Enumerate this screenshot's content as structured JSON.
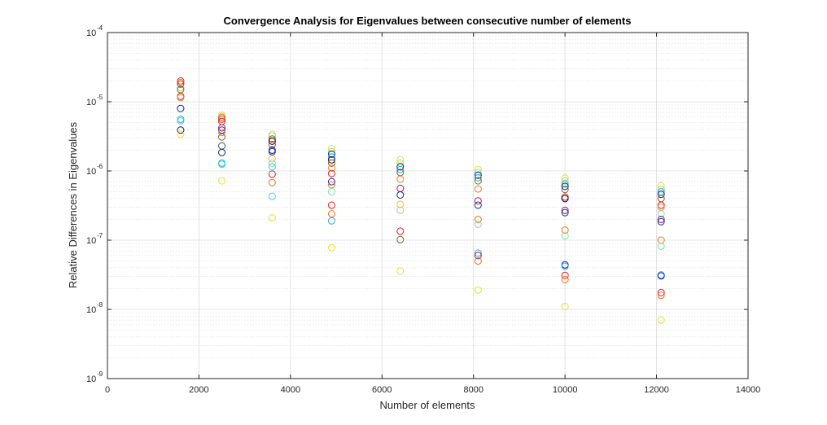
{
  "chart_data": {
    "type": "scatter",
    "title": "Convergence Analysis for Eigenvalues between consecutive number of elements",
    "xlabel": "Number of elements",
    "ylabel": "Relative Differences in Eigenvalues",
    "xlim": [
      0,
      14000
    ],
    "ylim": [
      1e-09,
      0.0001
    ],
    "yscale": "log",
    "grid": true,
    "minor_grid": true,
    "legend": "none",
    "marker": "circle-open",
    "x_ticks": [
      {
        "value": 0,
        "label": "0"
      },
      {
        "value": 2000,
        "label": "2000"
      },
      {
        "value": 4000,
        "label": "4000"
      },
      {
        "value": 6000,
        "label": "6000"
      },
      {
        "value": 8000,
        "label": "8000"
      },
      {
        "value": 10000,
        "label": "10000"
      },
      {
        "value": 12000,
        "label": "12000"
      },
      {
        "value": 14000,
        "label": "14000"
      }
    ],
    "y_ticks": [
      {
        "value": 1e-09,
        "base": "10",
        "exp": "-9"
      },
      {
        "value": 1e-08,
        "base": "10",
        "exp": "-8"
      },
      {
        "value": 1e-07,
        "base": "10",
        "exp": "-7"
      },
      {
        "value": 1e-06,
        "base": "10",
        "exp": "-6"
      },
      {
        "value": 1e-05,
        "base": "10",
        "exp": "-5"
      },
      {
        "value": 0.0001,
        "base": "10",
        "exp": "-4"
      }
    ],
    "points": [
      {
        "x": 1600,
        "y": 2e-05,
        "color": "#e03010"
      },
      {
        "x": 1600,
        "y": 1.9e-05,
        "color": "#f07020"
      },
      {
        "x": 1600,
        "y": 1.8e-05,
        "color": "#cc2020"
      },
      {
        "x": 1600,
        "y": 1.6e-05,
        "color": "#a0e080"
      },
      {
        "x": 1600,
        "y": 1.5e-05,
        "color": "#806020"
      },
      {
        "x": 1600,
        "y": 1.2e-05,
        "color": "#e02020"
      },
      {
        "x": 1600,
        "y": 1.15e-05,
        "color": "#f08030"
      },
      {
        "x": 1600,
        "y": 8e-06,
        "color": "#1020a0"
      },
      {
        "x": 1600,
        "y": 5.6e-06,
        "color": "#20b0e0"
      },
      {
        "x": 1600,
        "y": 5.3e-06,
        "color": "#30d0f0"
      },
      {
        "x": 1600,
        "y": 3.9e-06,
        "color": "#101040"
      },
      {
        "x": 1600,
        "y": 3.4e-06,
        "color": "#e8e020"
      },
      {
        "x": 2500,
        "y": 6.4e-06,
        "color": "#e0e040"
      },
      {
        "x": 2500,
        "y": 6.1e-06,
        "color": "#a0e080"
      },
      {
        "x": 2500,
        "y": 5.9e-06,
        "color": "#f07020"
      },
      {
        "x": 2500,
        "y": 5.6e-06,
        "color": "#d04040"
      },
      {
        "x": 2500,
        "y": 5.2e-06,
        "color": "#e02020"
      },
      {
        "x": 2500,
        "y": 4.2e-06,
        "color": "#a02060"
      },
      {
        "x": 2500,
        "y": 3.9e-06,
        "color": "#2030a0"
      },
      {
        "x": 2500,
        "y": 3.6e-06,
        "color": "#f08030"
      },
      {
        "x": 2500,
        "y": 3.1e-06,
        "color": "#806020"
      },
      {
        "x": 2500,
        "y": 2.3e-06,
        "color": "#405060"
      },
      {
        "x": 2500,
        "y": 1.85e-06,
        "color": "#1020a0"
      },
      {
        "x": 2500,
        "y": 1.3e-06,
        "color": "#20b0e0"
      },
      {
        "x": 2500,
        "y": 1.25e-06,
        "color": "#30d0f0"
      },
      {
        "x": 2500,
        "y": 7.2e-07,
        "color": "#e8e020"
      },
      {
        "x": 3600,
        "y": 3.4e-06,
        "color": "#e0e040"
      },
      {
        "x": 3600,
        "y": 3.2e-06,
        "color": "#a0e080"
      },
      {
        "x": 3600,
        "y": 2.9e-06,
        "color": "#806020"
      },
      {
        "x": 3600,
        "y": 2.7e-06,
        "color": "#101040"
      },
      {
        "x": 3600,
        "y": 2.4e-06,
        "color": "#e02020"
      },
      {
        "x": 3600,
        "y": 2e-06,
        "color": "#1020a0"
      },
      {
        "x": 3600,
        "y": 1.9e-06,
        "color": "#2030a0"
      },
      {
        "x": 3600,
        "y": 1.5e-06,
        "color": "#f0c020"
      },
      {
        "x": 3600,
        "y": 1.3e-06,
        "color": "#80e0a0"
      },
      {
        "x": 3600,
        "y": 1.15e-06,
        "color": "#30d0f0"
      },
      {
        "x": 3600,
        "y": 9e-07,
        "color": "#e02020"
      },
      {
        "x": 3600,
        "y": 6.8e-07,
        "color": "#f07020"
      },
      {
        "x": 3600,
        "y": 4.3e-07,
        "color": "#30d0f0"
      },
      {
        "x": 3600,
        "y": 2.1e-07,
        "color": "#e8e020"
      },
      {
        "x": 4900,
        "y": 2.1e-06,
        "color": "#e0e040"
      },
      {
        "x": 4900,
        "y": 1.9e-06,
        "color": "#a0e080"
      },
      {
        "x": 4900,
        "y": 1.75e-06,
        "color": "#1020a0"
      },
      {
        "x": 4900,
        "y": 1.6e-06,
        "color": "#20b0e0"
      },
      {
        "x": 4900,
        "y": 1.45e-06,
        "color": "#101040"
      },
      {
        "x": 4900,
        "y": 1.3e-06,
        "color": "#806020"
      },
      {
        "x": 4900,
        "y": 1.1e-06,
        "color": "#f08030"
      },
      {
        "x": 4900,
        "y": 9.2e-07,
        "color": "#e02020"
      },
      {
        "x": 4900,
        "y": 7e-07,
        "color": "#2030a0"
      },
      {
        "x": 4900,
        "y": 6.3e-07,
        "color": "#f07020"
      },
      {
        "x": 4900,
        "y": 5e-07,
        "color": "#80e0a0"
      },
      {
        "x": 4900,
        "y": 3.2e-07,
        "color": "#e02020"
      },
      {
        "x": 4900,
        "y": 2.4e-07,
        "color": "#f07020"
      },
      {
        "x": 4900,
        "y": 1.9e-07,
        "color": "#20b0e0"
      },
      {
        "x": 4900,
        "y": 7.8e-08,
        "color": "#e8e020"
      },
      {
        "x": 6400,
        "y": 1.45e-06,
        "color": "#e0e040"
      },
      {
        "x": 6400,
        "y": 1.3e-06,
        "color": "#a0e080"
      },
      {
        "x": 6400,
        "y": 1.15e-06,
        "color": "#1020a0"
      },
      {
        "x": 6400,
        "y": 1.05e-06,
        "color": "#20b0e0"
      },
      {
        "x": 6400,
        "y": 9.5e-07,
        "color": "#806020"
      },
      {
        "x": 6400,
        "y": 7.6e-07,
        "color": "#f08030"
      },
      {
        "x": 6400,
        "y": 5.6e-07,
        "color": "#a02060"
      },
      {
        "x": 6400,
        "y": 4.5e-07,
        "color": "#1020a0"
      },
      {
        "x": 6400,
        "y": 3.3e-07,
        "color": "#f0c020"
      },
      {
        "x": 6400,
        "y": 2.7e-07,
        "color": "#80e0a0"
      },
      {
        "x": 6400,
        "y": 1.35e-07,
        "color": "#e02020"
      },
      {
        "x": 6400,
        "y": 1.02e-07,
        "color": "#806020"
      },
      {
        "x": 6400,
        "y": 3.6e-08,
        "color": "#e8e020"
      },
      {
        "x": 8100,
        "y": 1.05e-06,
        "color": "#e0e040"
      },
      {
        "x": 8100,
        "y": 9.5e-07,
        "color": "#a0e080"
      },
      {
        "x": 8100,
        "y": 8.7e-07,
        "color": "#1020a0"
      },
      {
        "x": 8100,
        "y": 8e-07,
        "color": "#20b0e0"
      },
      {
        "x": 8100,
        "y": 7.2e-07,
        "color": "#806020"
      },
      {
        "x": 8100,
        "y": 5.5e-07,
        "color": "#f08030"
      },
      {
        "x": 8100,
        "y": 3.7e-07,
        "color": "#a02060"
      },
      {
        "x": 8100,
        "y": 3.2e-07,
        "color": "#2030a0"
      },
      {
        "x": 8100,
        "y": 2e-07,
        "color": "#f07020"
      },
      {
        "x": 8100,
        "y": 1.7e-07,
        "color": "#80e0a0"
      },
      {
        "x": 8100,
        "y": 6.5e-08,
        "color": "#20b0e0"
      },
      {
        "x": 8100,
        "y": 6e-08,
        "color": "#a02060"
      },
      {
        "x": 8100,
        "y": 5e-08,
        "color": "#f07020"
      },
      {
        "x": 8100,
        "y": 1.9e-08,
        "color": "#e8e020"
      },
      {
        "x": 10000,
        "y": 7.9e-07,
        "color": "#e0e040"
      },
      {
        "x": 10000,
        "y": 7.2e-07,
        "color": "#a0e080"
      },
      {
        "x": 10000,
        "y": 6.5e-07,
        "color": "#20b0e0"
      },
      {
        "x": 10000,
        "y": 6e-07,
        "color": "#1020a0"
      },
      {
        "x": 10000,
        "y": 5.4e-07,
        "color": "#806020"
      },
      {
        "x": 10000,
        "y": 4.2e-07,
        "color": "#e02020"
      },
      {
        "x": 10000,
        "y": 4e-07,
        "color": "#101040"
      },
      {
        "x": 10000,
        "y": 2.7e-07,
        "color": "#a02060"
      },
      {
        "x": 10000,
        "y": 2.5e-07,
        "color": "#2030a0"
      },
      {
        "x": 10000,
        "y": 1.4e-07,
        "color": "#f07020"
      },
      {
        "x": 10000,
        "y": 1.15e-07,
        "color": "#80e0a0"
      },
      {
        "x": 10000,
        "y": 4.4e-08,
        "color": "#1020a0"
      },
      {
        "x": 10000,
        "y": 4.2e-08,
        "color": "#20b0e0"
      },
      {
        "x": 10000,
        "y": 3.1e-08,
        "color": "#e02020"
      },
      {
        "x": 10000,
        "y": 2.7e-08,
        "color": "#f07020"
      },
      {
        "x": 10000,
        "y": 1.1e-08,
        "color": "#e8e020"
      },
      {
        "x": 12100,
        "y": 6.1e-07,
        "color": "#e0e040"
      },
      {
        "x": 12100,
        "y": 5.5e-07,
        "color": "#a0e080"
      },
      {
        "x": 12100,
        "y": 5e-07,
        "color": "#20b0e0"
      },
      {
        "x": 12100,
        "y": 4.6e-07,
        "color": "#1020a0"
      },
      {
        "x": 12100,
        "y": 4e-07,
        "color": "#806020"
      },
      {
        "x": 12100,
        "y": 3.2e-07,
        "color": "#e02020"
      },
      {
        "x": 12100,
        "y": 3e-07,
        "color": "#f08030"
      },
      {
        "x": 12100,
        "y": 2.4e-07,
        "color": "#80e0a0"
      },
      {
        "x": 12100,
        "y": 2e-07,
        "color": "#a02060"
      },
      {
        "x": 12100,
        "y": 1.85e-07,
        "color": "#2030a0"
      },
      {
        "x": 12100,
        "y": 1e-07,
        "color": "#f07020"
      },
      {
        "x": 12100,
        "y": 8.2e-08,
        "color": "#80e0a0"
      },
      {
        "x": 12100,
        "y": 3.15e-08,
        "color": "#20b0e0"
      },
      {
        "x": 12100,
        "y": 3.05e-08,
        "color": "#1020a0"
      },
      {
        "x": 12100,
        "y": 1.75e-08,
        "color": "#e02020"
      },
      {
        "x": 12100,
        "y": 1.6e-08,
        "color": "#f07020"
      },
      {
        "x": 12100,
        "y": 7e-09,
        "color": "#e8e020"
      }
    ]
  }
}
